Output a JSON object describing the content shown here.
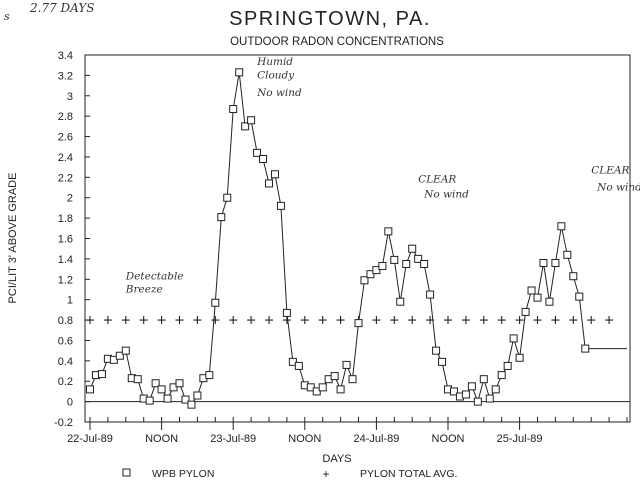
{
  "chart_data": {
    "type": "line",
    "title": "SPRINGTOWN, PA.",
    "subtitle": "OUTDOOR RADON CONCENTRATIONS",
    "ylabel": "PCI/LIT 3' ABOVE GRADE",
    "xlabel": "DAYS",
    "ylim": [
      -0.2,
      3.4
    ],
    "yticks": [
      "-0.2",
      "0",
      "0.2",
      "0.4",
      "0.6",
      "0.8",
      "1",
      "1.2",
      "1.4",
      "1.6",
      "1.8",
      "2",
      "2.2",
      "2.4",
      "2.6",
      "2.8",
      "3",
      "3.2",
      "3.4"
    ],
    "xlim": [
      0,
      90
    ],
    "xticks": [
      {
        "label": "22-Jul-89",
        "x": 0
      },
      {
        "label": "NOON",
        "x": 12
      },
      {
        "label": "23-Jul-89",
        "x": 24
      },
      {
        "label": "NOON",
        "x": 36
      },
      {
        "label": "24-Jul-89",
        "x": 48
      },
      {
        "label": "NOON",
        "x": 60
      },
      {
        "label": "25-Jul-89",
        "x": 72
      }
    ],
    "grid": false,
    "legend_position": "bottom",
    "series": [
      {
        "name": "WPB PYLON",
        "marker": "square",
        "x": [
          0,
          1,
          2,
          3,
          4,
          5,
          6,
          7,
          8,
          9,
          10,
          11,
          12,
          13,
          14,
          15,
          16,
          17,
          18,
          19,
          20,
          21,
          22,
          23,
          24,
          25,
          26,
          27,
          28,
          29,
          30,
          31,
          32,
          33,
          34,
          35,
          36,
          37,
          38,
          39,
          40,
          41,
          42,
          43,
          44,
          45,
          46,
          47,
          48,
          49,
          50,
          51,
          52,
          53,
          54,
          55,
          56,
          57,
          58,
          59,
          60,
          61,
          62,
          63,
          64,
          65,
          66,
          67,
          68,
          69,
          70,
          71,
          72,
          73,
          74,
          75,
          76,
          77,
          78,
          79,
          80,
          81,
          82,
          83,
          84,
          85,
          86,
          87,
          88,
          89,
          90
        ],
        "values": [
          0.12,
          0.26,
          0.27,
          0.42,
          0.41,
          0.45,
          0.5,
          0.23,
          0.22,
          0.03,
          0.01,
          0.18,
          0.12,
          0.03,
          0.14,
          0.18,
          0.02,
          -0.03,
          0.06,
          0.23,
          0.26,
          0.97,
          1.81,
          2.0,
          2.87,
          3.23,
          2.7,
          2.76,
          2.44,
          2.38,
          2.14,
          2.23,
          1.92,
          0.87,
          0.39,
          0.35,
          0.16,
          0.14,
          0.1,
          0.14,
          0.22,
          0.25,
          0.12,
          0.36,
          0.22,
          0.77,
          1.19,
          1.25,
          1.29,
          1.33,
          1.67,
          1.39,
          0.98,
          1.35,
          1.5,
          1.4,
          1.35,
          1.05,
          0.5,
          0.39,
          0.12,
          0.1,
          0.05,
          0.07,
          0.15,
          0.0,
          0.22,
          0.03,
          0.12,
          0.26,
          0.35,
          0.62,
          0.43,
          0.88,
          1.09,
          1.02,
          1.36,
          0.98,
          1.36,
          1.72,
          1.44,
          1.23,
          1.03,
          0.52,
          0.52,
          0.52,
          0.52,
          0.52,
          0.52,
          0.52,
          0.52
        ]
      },
      {
        "name": "PYLON TOTAL AVG.",
        "marker": "plus",
        "x": [
          0,
          3,
          6,
          9,
          12,
          15,
          18,
          21,
          24,
          27,
          30,
          33,
          36,
          39,
          42,
          45,
          48,
          51,
          54,
          57,
          60,
          63,
          66,
          69,
          72,
          75,
          78,
          81,
          84,
          87
        ],
        "values": [
          0.8,
          0.8,
          0.8,
          0.8,
          0.8,
          0.8,
          0.8,
          0.8,
          0.8,
          0.8,
          0.8,
          0.8,
          0.8,
          0.8,
          0.8,
          0.8,
          0.8,
          0.8,
          0.8,
          0.8,
          0.8,
          0.8,
          0.8,
          0.8,
          0.8,
          0.8,
          0.8,
          0.8,
          0.8,
          0.8
        ]
      }
    ],
    "annotations": [
      {
        "text": "Detectable",
        "x": 6,
        "y": 1.2
      },
      {
        "text": "Breeze",
        "x": 6,
        "y": 1.07
      },
      {
        "text": "Humid",
        "x": 28,
        "y": 3.3
      },
      {
        "text": "Cloudy",
        "x": 28,
        "y": 3.17
      },
      {
        "text": "No wind",
        "x": 28,
        "y": 3.0
      },
      {
        "text": "CLEAR",
        "x": 55,
        "y": 2.15
      },
      {
        "text": "No wind",
        "x": 56,
        "y": 2.0
      },
      {
        "text": "CLEAR",
        "x": 84,
        "y": 2.24
      },
      {
        "text": "No wind",
        "x": 85,
        "y": 2.07
      }
    ],
    "margin_notes": [
      {
        "text": "s"
      },
      {
        "text": "2.77 DAYS"
      }
    ]
  }
}
